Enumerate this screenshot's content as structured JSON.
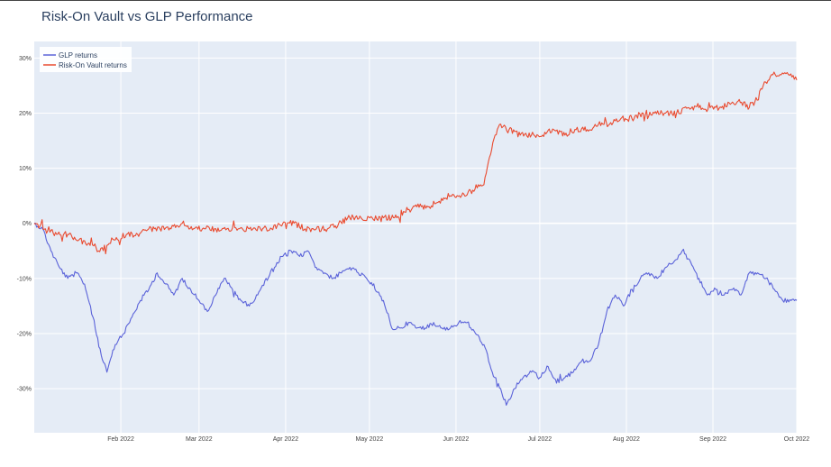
{
  "chart_data": {
    "type": "line",
    "title": "Risk-On Vault vs GLP Performance",
    "xlabel": "",
    "ylabel": "",
    "x_range": [
      "2022-01-01",
      "2022-10-01"
    ],
    "x_ticks": [
      {
        "date": "2022-02-01",
        "label": "Feb 2022"
      },
      {
        "date": "2022-03-01",
        "label": "Mar 2022"
      },
      {
        "date": "2022-04-01",
        "label": "Apr 2022"
      },
      {
        "date": "2022-05-01",
        "label": "May 2022"
      },
      {
        "date": "2022-06-01",
        "label": "Jun 2022"
      },
      {
        "date": "2022-07-01",
        "label": "Jul 2022"
      },
      {
        "date": "2022-08-01",
        "label": "Aug 2022"
      },
      {
        "date": "2022-09-01",
        "label": "Sep 2022"
      },
      {
        "date": "2022-10-01",
        "label": "Oct 2022"
      }
    ],
    "ylim": [
      -38,
      33
    ],
    "y_ticks": [
      {
        "value": 30,
        "label": "30%"
      },
      {
        "value": 20,
        "label": "20%"
      },
      {
        "value": 10,
        "label": "10%"
      },
      {
        "value": 0,
        "label": "0%"
      },
      {
        "value": -10,
        "label": "-10%"
      },
      {
        "value": -20,
        "label": "-20%"
      },
      {
        "value": -30,
        "label": "-30%"
      }
    ],
    "grid": true,
    "legend_position": "top-left",
    "colors": {
      "plot_bg": "#e5ecf6",
      "grid": "#ffffff",
      "title": "#2a3f5f"
    },
    "series": [
      {
        "name": "GLP returns",
        "color": "#5b63d9",
        "points": [
          [
            "2022-01-01",
            0
          ],
          [
            "2022-01-04",
            -1
          ],
          [
            "2022-01-07",
            -5
          ],
          [
            "2022-01-10",
            -8
          ],
          [
            "2022-01-13",
            -10
          ],
          [
            "2022-01-16",
            -9
          ],
          [
            "2022-01-19",
            -11
          ],
          [
            "2022-01-22",
            -17
          ],
          [
            "2022-01-25",
            -24
          ],
          [
            "2022-01-27",
            -27
          ],
          [
            "2022-01-30",
            -22
          ],
          [
            "2022-02-02",
            -20
          ],
          [
            "2022-02-05",
            -17
          ],
          [
            "2022-02-08",
            -14
          ],
          [
            "2022-02-11",
            -12
          ],
          [
            "2022-02-14",
            -9
          ],
          [
            "2022-02-17",
            -11
          ],
          [
            "2022-02-20",
            -13
          ],
          [
            "2022-02-23",
            -10
          ],
          [
            "2022-02-26",
            -12
          ],
          [
            "2022-03-01",
            -14
          ],
          [
            "2022-03-04",
            -16
          ],
          [
            "2022-03-07",
            -13
          ],
          [
            "2022-03-10",
            -10
          ],
          [
            "2022-03-13",
            -12
          ],
          [
            "2022-03-16",
            -14
          ],
          [
            "2022-03-19",
            -15
          ],
          [
            "2022-03-22",
            -13
          ],
          [
            "2022-03-25",
            -10
          ],
          [
            "2022-03-28",
            -8
          ],
          [
            "2022-03-31",
            -6
          ],
          [
            "2022-04-03",
            -5
          ],
          [
            "2022-04-06",
            -6
          ],
          [
            "2022-04-09",
            -5
          ],
          [
            "2022-04-12",
            -8
          ],
          [
            "2022-04-15",
            -9
          ],
          [
            "2022-04-18",
            -10
          ],
          [
            "2022-04-21",
            -9
          ],
          [
            "2022-04-24",
            -8
          ],
          [
            "2022-04-27",
            -9
          ],
          [
            "2022-04-30",
            -10
          ],
          [
            "2022-05-03",
            -12
          ],
          [
            "2022-05-06",
            -14
          ],
          [
            "2022-05-09",
            -19
          ],
          [
            "2022-05-12",
            -19
          ],
          [
            "2022-05-15",
            -18
          ],
          [
            "2022-05-18",
            -19
          ],
          [
            "2022-05-21",
            -19
          ],
          [
            "2022-05-24",
            -18
          ],
          [
            "2022-05-27",
            -19
          ],
          [
            "2022-05-30",
            -19
          ],
          [
            "2022-06-02",
            -18
          ],
          [
            "2022-06-05",
            -18
          ],
          [
            "2022-06-08",
            -20
          ],
          [
            "2022-06-11",
            -22
          ],
          [
            "2022-06-14",
            -27
          ],
          [
            "2022-06-17",
            -30
          ],
          [
            "2022-06-19",
            -33
          ],
          [
            "2022-06-22",
            -30
          ],
          [
            "2022-06-25",
            -28
          ],
          [
            "2022-06-28",
            -27
          ],
          [
            "2022-07-01",
            -28
          ],
          [
            "2022-07-04",
            -26
          ],
          [
            "2022-07-07",
            -29
          ],
          [
            "2022-07-10",
            -28
          ],
          [
            "2022-07-13",
            -27
          ],
          [
            "2022-07-16",
            -25
          ],
          [
            "2022-07-19",
            -25
          ],
          [
            "2022-07-22",
            -22
          ],
          [
            "2022-07-25",
            -16
          ],
          [
            "2022-07-28",
            -13
          ],
          [
            "2022-07-31",
            -15
          ],
          [
            "2022-08-03",
            -12
          ],
          [
            "2022-08-06",
            -10
          ],
          [
            "2022-08-09",
            -9
          ],
          [
            "2022-08-12",
            -10
          ],
          [
            "2022-08-15",
            -8
          ],
          [
            "2022-08-18",
            -7
          ],
          [
            "2022-08-21",
            -5
          ],
          [
            "2022-08-24",
            -7
          ],
          [
            "2022-08-27",
            -10
          ],
          [
            "2022-08-30",
            -13
          ],
          [
            "2022-09-02",
            -12
          ],
          [
            "2022-09-05",
            -13
          ],
          [
            "2022-09-08",
            -12
          ],
          [
            "2022-09-11",
            -13
          ],
          [
            "2022-09-14",
            -9
          ],
          [
            "2022-09-17",
            -9
          ],
          [
            "2022-09-20",
            -10
          ],
          [
            "2022-09-23",
            -12
          ],
          [
            "2022-09-26",
            -14
          ],
          [
            "2022-09-29",
            -14
          ],
          [
            "2022-10-01",
            -14
          ]
        ]
      },
      {
        "name": "Risk-On Vault returns",
        "color": "#e94b30",
        "points": [
          [
            "2022-01-01",
            0
          ],
          [
            "2022-01-05",
            -1
          ],
          [
            "2022-01-09",
            -2
          ],
          [
            "2022-01-13",
            -2
          ],
          [
            "2022-01-17",
            -3
          ],
          [
            "2022-01-21",
            -4
          ],
          [
            "2022-01-24",
            -5
          ],
          [
            "2022-01-27",
            -4
          ],
          [
            "2022-01-30",
            -3
          ],
          [
            "2022-02-03",
            -2
          ],
          [
            "2022-02-07",
            -2
          ],
          [
            "2022-02-11",
            -1
          ],
          [
            "2022-02-15",
            -1
          ],
          [
            "2022-02-19",
            -1
          ],
          [
            "2022-02-23",
            0
          ],
          [
            "2022-02-27",
            -1
          ],
          [
            "2022-03-03",
            -1
          ],
          [
            "2022-03-07",
            -1
          ],
          [
            "2022-03-11",
            -1
          ],
          [
            "2022-03-15",
            -1
          ],
          [
            "2022-03-19",
            -1
          ],
          [
            "2022-03-23",
            -1
          ],
          [
            "2022-03-27",
            -1
          ],
          [
            "2022-03-31",
            0
          ],
          [
            "2022-04-04",
            0
          ],
          [
            "2022-04-08",
            -1
          ],
          [
            "2022-04-12",
            -1
          ],
          [
            "2022-04-16",
            -1
          ],
          [
            "2022-04-20",
            0
          ],
          [
            "2022-04-24",
            1
          ],
          [
            "2022-04-28",
            1
          ],
          [
            "2022-05-02",
            1
          ],
          [
            "2022-05-06",
            1
          ],
          [
            "2022-05-10",
            1
          ],
          [
            "2022-05-14",
            2
          ],
          [
            "2022-05-18",
            3
          ],
          [
            "2022-05-22",
            3
          ],
          [
            "2022-05-26",
            4
          ],
          [
            "2022-05-30",
            5
          ],
          [
            "2022-06-03",
            5
          ],
          [
            "2022-06-07",
            6
          ],
          [
            "2022-06-11",
            7
          ],
          [
            "2022-06-13",
            12
          ],
          [
            "2022-06-15",
            16
          ],
          [
            "2022-06-17",
            18
          ],
          [
            "2022-06-20",
            17
          ],
          [
            "2022-06-24",
            16
          ],
          [
            "2022-06-28",
            16
          ],
          [
            "2022-07-02",
            16
          ],
          [
            "2022-07-06",
            17
          ],
          [
            "2022-07-10",
            16
          ],
          [
            "2022-07-14",
            17
          ],
          [
            "2022-07-18",
            17
          ],
          [
            "2022-07-22",
            18
          ],
          [
            "2022-07-26",
            18
          ],
          [
            "2022-07-30",
            19
          ],
          [
            "2022-08-03",
            19
          ],
          [
            "2022-08-07",
            20
          ],
          [
            "2022-08-11",
            20
          ],
          [
            "2022-08-15",
            20
          ],
          [
            "2022-08-19",
            20
          ],
          [
            "2022-08-23",
            21
          ],
          [
            "2022-08-27",
            21
          ],
          [
            "2022-08-31",
            21
          ],
          [
            "2022-09-04",
            21
          ],
          [
            "2022-09-08",
            22
          ],
          [
            "2022-09-12",
            22
          ],
          [
            "2022-09-14",
            21
          ],
          [
            "2022-09-16",
            22
          ],
          [
            "2022-09-19",
            25
          ],
          [
            "2022-09-22",
            27
          ],
          [
            "2022-09-25",
            27
          ],
          [
            "2022-09-28",
            27
          ],
          [
            "2022-10-01",
            26
          ]
        ]
      }
    ]
  }
}
